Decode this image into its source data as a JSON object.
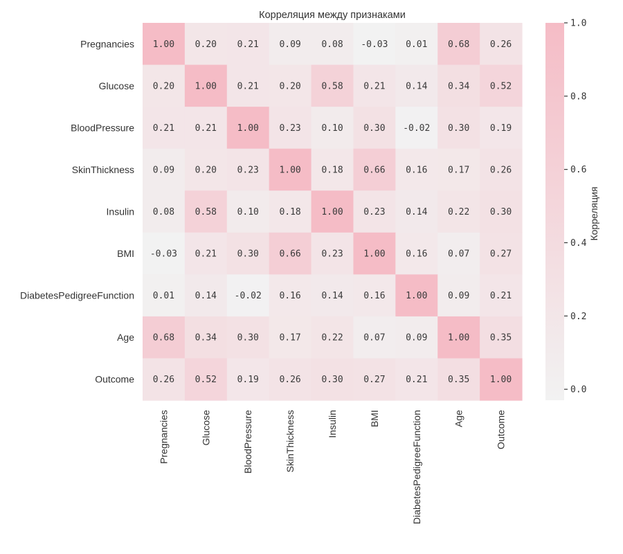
{
  "chart_data": {
    "type": "heatmap",
    "title": "Корреляция между признаками",
    "xlabel": "",
    "ylabel": "",
    "labels": [
      "Pregnancies",
      "Glucose",
      "BloodPressure",
      "SkinThickness",
      "Insulin",
      "BMI",
      "DiabetesPedigreeFunction",
      "Age",
      "Outcome"
    ],
    "values": [
      [
        1.0,
        0.2,
        0.21,
        0.09,
        0.08,
        -0.03,
        0.01,
        0.68,
        0.26
      ],
      [
        0.2,
        1.0,
        0.21,
        0.2,
        0.58,
        0.21,
        0.14,
        0.34,
        0.52
      ],
      [
        0.21,
        0.21,
        1.0,
        0.23,
        0.1,
        0.3,
        -0.02,
        0.3,
        0.19
      ],
      [
        0.09,
        0.2,
        0.23,
        1.0,
        0.18,
        0.66,
        0.16,
        0.17,
        0.26
      ],
      [
        0.08,
        0.58,
        0.1,
        0.18,
        1.0,
        0.23,
        0.14,
        0.22,
        0.3
      ],
      [
        -0.03,
        0.21,
        0.3,
        0.66,
        0.23,
        1.0,
        0.16,
        0.07,
        0.27
      ],
      [
        0.01,
        0.14,
        -0.02,
        0.16,
        0.14,
        0.16,
        1.0,
        0.09,
        0.21
      ],
      [
        0.68,
        0.34,
        0.3,
        0.17,
        0.22,
        0.07,
        0.09,
        1.0,
        0.35
      ],
      [
        0.26,
        0.52,
        0.19,
        0.26,
        0.3,
        0.27,
        0.21,
        0.35,
        1.0
      ]
    ],
    "annotation_format": "0.00",
    "colorbar": {
      "label": "Корреляция",
      "range": [
        -0.03,
        1.0
      ],
      "ticks": [
        0.0,
        0.2,
        0.4,
        0.6,
        0.8,
        1.0
      ],
      "tick_labels": [
        "0.0",
        "0.2",
        "0.4",
        "0.6",
        "0.8",
        "1.0"
      ],
      "placement": "right"
    },
    "colormap": {
      "low": "#f2f2f2",
      "high": "#f5bcc6"
    },
    "grid": false
  }
}
